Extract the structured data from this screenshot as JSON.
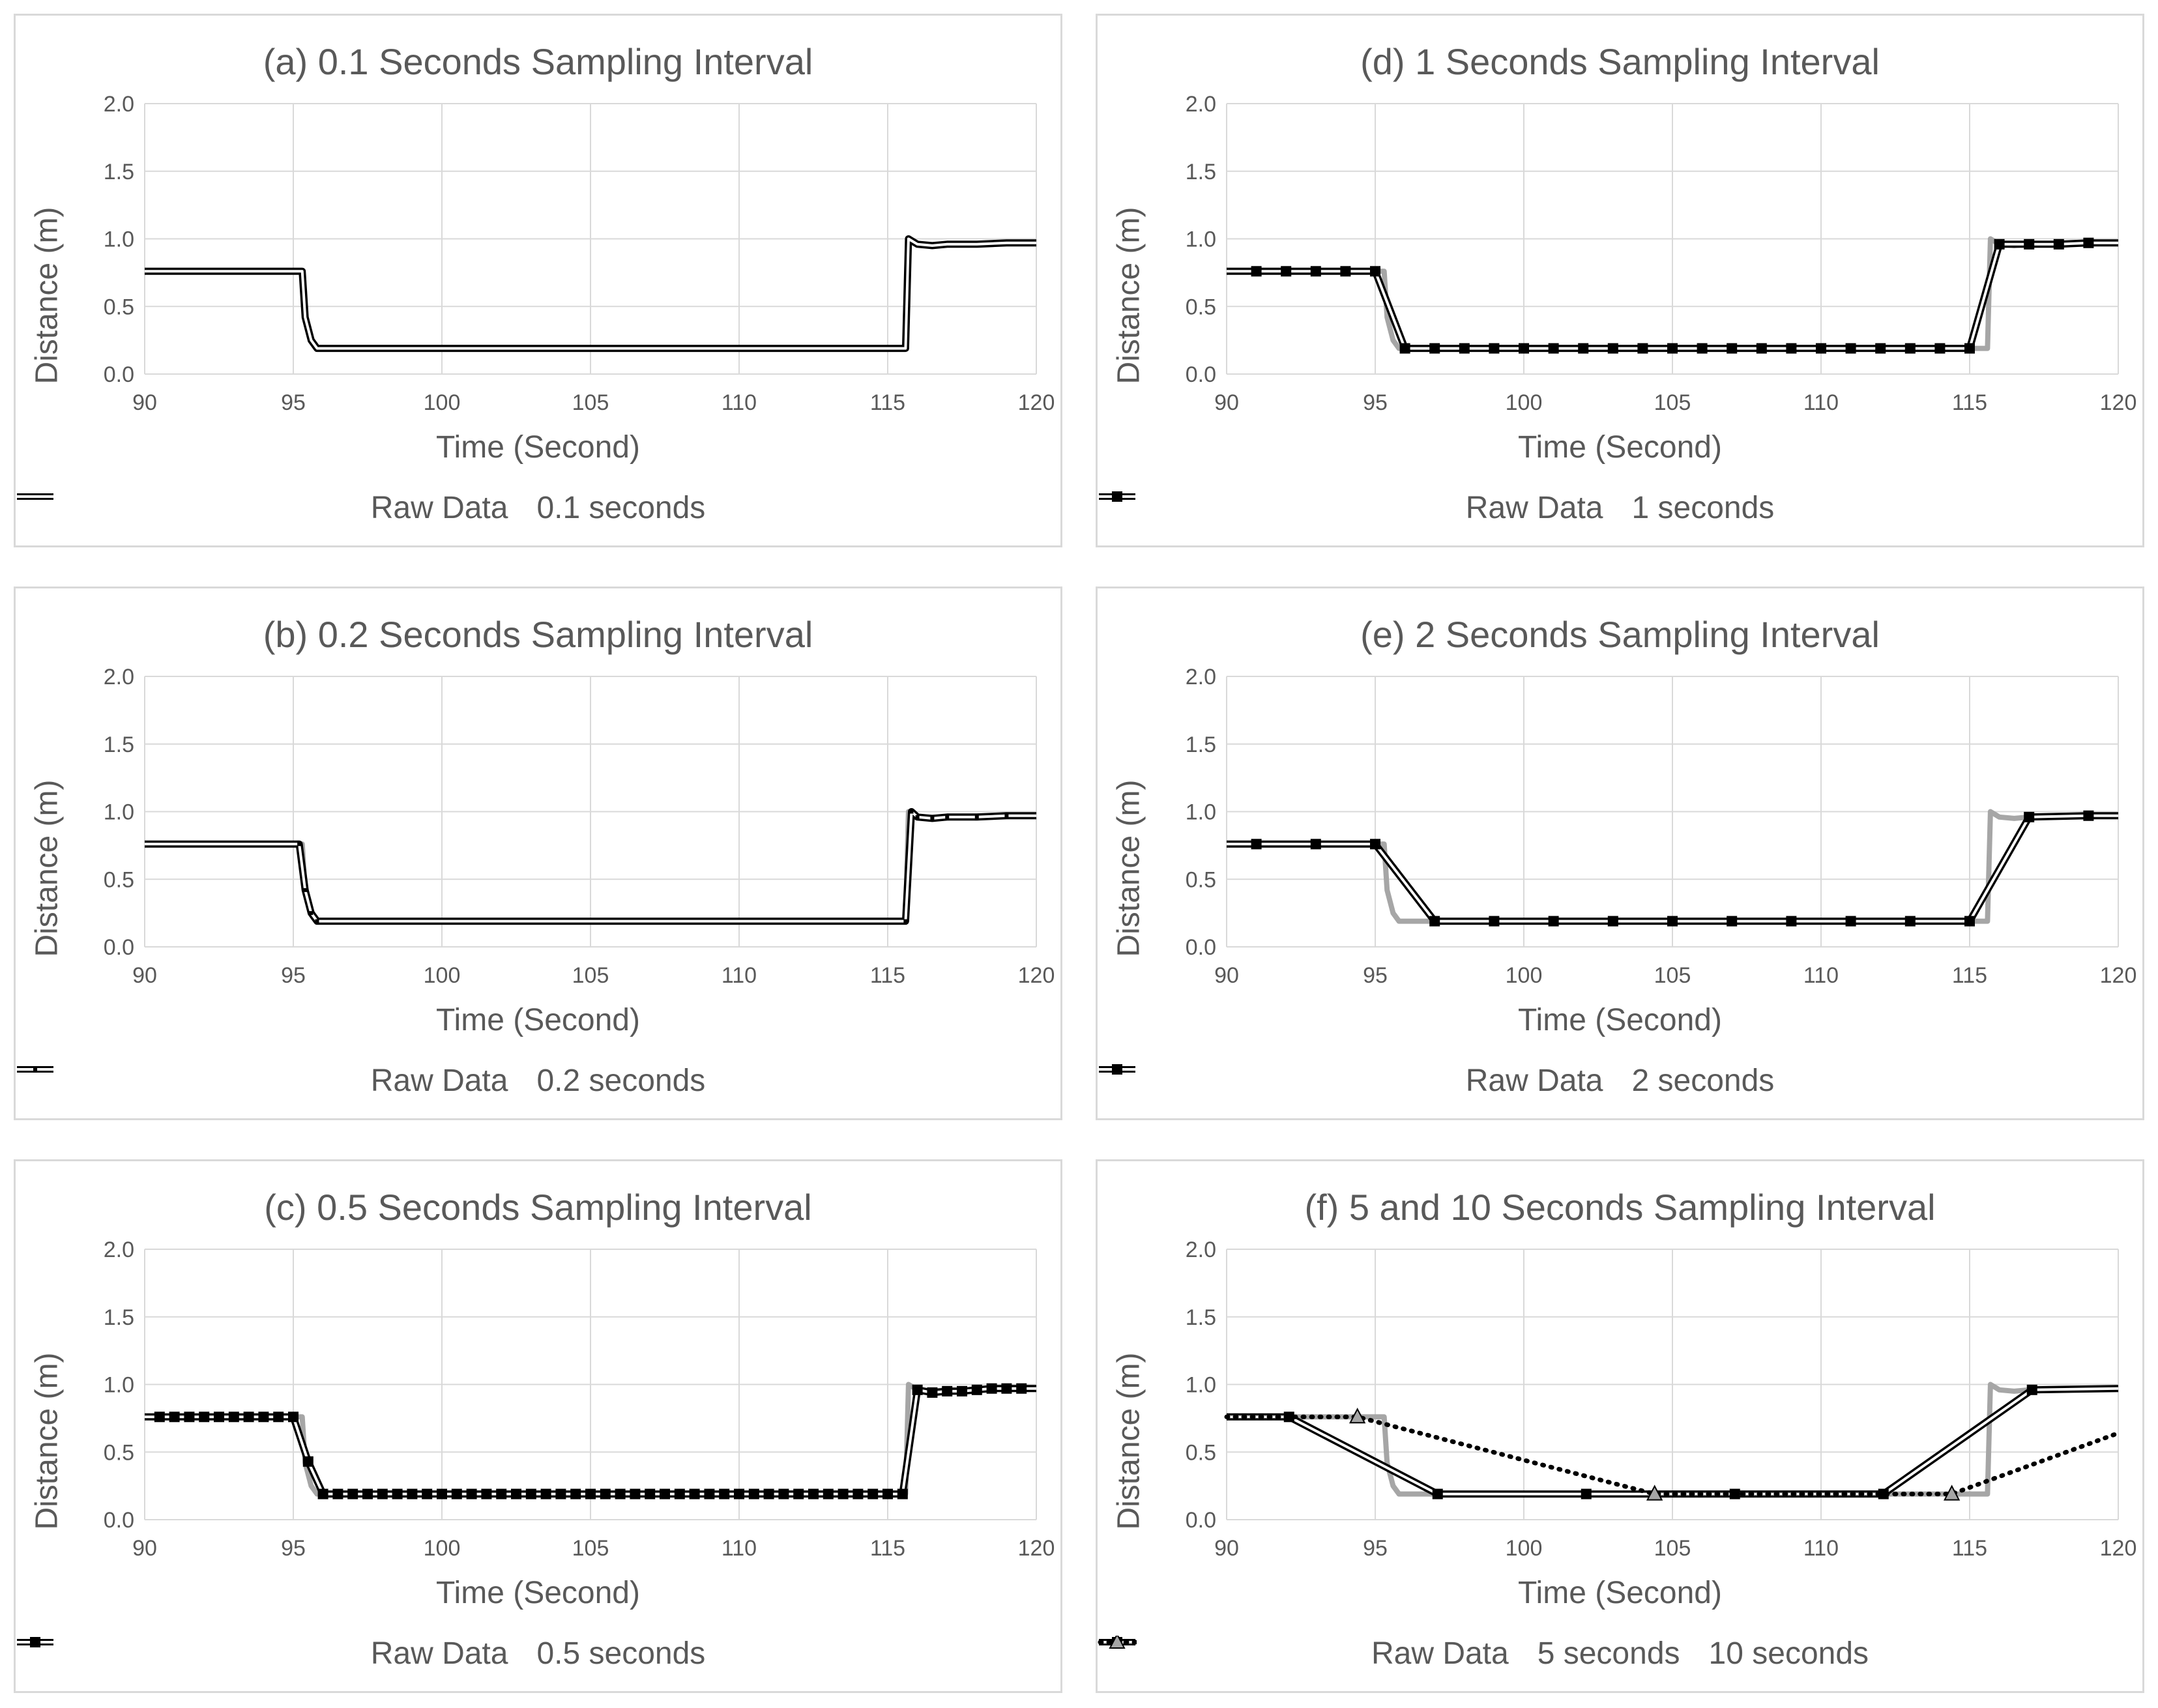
{
  "colors": {
    "raw": "#a6a6a6",
    "series": "#000000",
    "grid": "#d9d9d9",
    "text": "#595959",
    "triangle_fill": "#a6a6a6"
  },
  "chart_data": [
    {
      "id": "a",
      "type": "line",
      "title": "(a) 0.1 Seconds Sampling Interval",
      "xlabel": "Time (Second)",
      "ylabel": "Distance  (m)",
      "xlim": [
        90,
        120
      ],
      "ylim": [
        0.0,
        2.0
      ],
      "xticks": [
        "90",
        "95",
        "100",
        "105",
        "110",
        "115",
        "120"
      ],
      "yticks": [
        "0.0",
        "0.5",
        "1.0",
        "1.5",
        "2.0"
      ],
      "raw": [
        [
          90,
          0.76
        ],
        [
          95.3,
          0.76
        ],
        [
          95.4,
          0.42
        ],
        [
          95.6,
          0.25
        ],
        [
          95.8,
          0.19
        ],
        [
          115.6,
          0.19
        ],
        [
          115.7,
          1.0
        ],
        [
          116,
          0.96
        ],
        [
          116.5,
          0.95
        ],
        [
          117,
          0.96
        ],
        [
          118,
          0.96
        ],
        [
          119,
          0.97
        ],
        [
          120,
          0.97
        ]
      ],
      "series": [
        {
          "name": "0.1 seconds",
          "style": "double",
          "marker": "none",
          "points": [
            [
              90,
              0.76
            ],
            [
              95.3,
              0.76
            ],
            [
              95.4,
              0.42
            ],
            [
              95.6,
              0.25
            ],
            [
              95.8,
              0.19
            ],
            [
              115.6,
              0.19
            ],
            [
              115.7,
              1.0
            ],
            [
              116,
              0.96
            ],
            [
              116.5,
              0.95
            ],
            [
              117,
              0.96
            ],
            [
              118,
              0.96
            ],
            [
              119,
              0.97
            ],
            [
              120,
              0.97
            ]
          ]
        }
      ],
      "legend": [
        "Raw Data",
        "0.1 seconds"
      ]
    },
    {
      "id": "b",
      "type": "line",
      "title": "(b) 0.2 Seconds Sampling Interval",
      "xlabel": "Time (Second)",
      "ylabel": "Distance  (m)",
      "xlim": [
        90,
        120
      ],
      "ylim": [
        0.0,
        2.0
      ],
      "xticks": [
        "90",
        "95",
        "100",
        "105",
        "110",
        "115",
        "120"
      ],
      "yticks": [
        "0.0",
        "0.5",
        "1.0",
        "1.5",
        "2.0"
      ],
      "raw": [
        [
          90,
          0.76
        ],
        [
          95.3,
          0.76
        ],
        [
          95.4,
          0.42
        ],
        [
          95.6,
          0.25
        ],
        [
          95.8,
          0.19
        ],
        [
          115.6,
          0.19
        ],
        [
          115.7,
          1.0
        ],
        [
          116,
          0.96
        ],
        [
          116.5,
          0.95
        ],
        [
          117,
          0.96
        ],
        [
          118,
          0.96
        ],
        [
          119,
          0.97
        ],
        [
          120,
          0.97
        ]
      ],
      "series": [
        {
          "name": "0.2 seconds",
          "style": "double",
          "marker": "dot",
          "points": [
            [
              90,
              0.76
            ],
            [
              95.2,
              0.76
            ],
            [
              95.4,
              0.42
            ],
            [
              95.6,
              0.25
            ],
            [
              95.8,
              0.19
            ],
            [
              115.6,
              0.19
            ],
            [
              115.8,
              1.0
            ],
            [
              116,
              0.96
            ],
            [
              116.5,
              0.95
            ],
            [
              117,
              0.96
            ],
            [
              118,
              0.96
            ],
            [
              119,
              0.97
            ],
            [
              120,
              0.97
            ]
          ]
        }
      ],
      "legend": [
        "Raw Data",
        "0.2 seconds"
      ]
    },
    {
      "id": "c",
      "type": "line",
      "title": "(c) 0.5 Seconds Sampling Interval",
      "xlabel": "Time (Second)",
      "ylabel": "Distance  (m)",
      "xlim": [
        90,
        120
      ],
      "ylim": [
        0.0,
        2.0
      ],
      "xticks": [
        "90",
        "95",
        "100",
        "105",
        "110",
        "115",
        "120"
      ],
      "yticks": [
        "0.0",
        "0.5",
        "1.0",
        "1.5",
        "2.0"
      ],
      "raw": [
        [
          90,
          0.76
        ],
        [
          95.3,
          0.76
        ],
        [
          95.4,
          0.42
        ],
        [
          95.6,
          0.25
        ],
        [
          95.8,
          0.19
        ],
        [
          115.6,
          0.19
        ],
        [
          115.7,
          1.0
        ],
        [
          116,
          0.96
        ],
        [
          116.5,
          0.95
        ],
        [
          117,
          0.96
        ],
        [
          118,
          0.96
        ],
        [
          119,
          0.97
        ],
        [
          120,
          0.97
        ]
      ],
      "series": [
        {
          "name": "0.5 seconds",
          "style": "double",
          "marker": "square",
          "points": [
            [
              90,
              0.76
            ],
            [
              90.5,
              0.76
            ],
            [
              91,
              0.76
            ],
            [
              91.5,
              0.76
            ],
            [
              92,
              0.76
            ],
            [
              92.5,
              0.76
            ],
            [
              93,
              0.76
            ],
            [
              93.5,
              0.76
            ],
            [
              94,
              0.76
            ],
            [
              94.5,
              0.76
            ],
            [
              95,
              0.76
            ],
            [
              95.5,
              0.43
            ],
            [
              96,
              0.19
            ],
            [
              96.5,
              0.19
            ],
            [
              97,
              0.19
            ],
            [
              97.5,
              0.19
            ],
            [
              98,
              0.19
            ],
            [
              98.5,
              0.19
            ],
            [
              99,
              0.19
            ],
            [
              99.5,
              0.19
            ],
            [
              100,
              0.19
            ],
            [
              100.5,
              0.19
            ],
            [
              101,
              0.19
            ],
            [
              101.5,
              0.19
            ],
            [
              102,
              0.19
            ],
            [
              102.5,
              0.19
            ],
            [
              103,
              0.19
            ],
            [
              103.5,
              0.19
            ],
            [
              104,
              0.19
            ],
            [
              104.5,
              0.19
            ],
            [
              105,
              0.19
            ],
            [
              105.5,
              0.19
            ],
            [
              106,
              0.19
            ],
            [
              106.5,
              0.19
            ],
            [
              107,
              0.19
            ],
            [
              107.5,
              0.19
            ],
            [
              108,
              0.19
            ],
            [
              108.5,
              0.19
            ],
            [
              109,
              0.19
            ],
            [
              109.5,
              0.19
            ],
            [
              110,
              0.19
            ],
            [
              110.5,
              0.19
            ],
            [
              111,
              0.19
            ],
            [
              111.5,
              0.19
            ],
            [
              112,
              0.19
            ],
            [
              112.5,
              0.19
            ],
            [
              113,
              0.19
            ],
            [
              113.5,
              0.19
            ],
            [
              114,
              0.19
            ],
            [
              114.5,
              0.19
            ],
            [
              115,
              0.19
            ],
            [
              115.5,
              0.19
            ],
            [
              116,
              0.96
            ],
            [
              116.5,
              0.94
            ],
            [
              117,
              0.95
            ],
            [
              117.5,
              0.95
            ],
            [
              118,
              0.96
            ],
            [
              118.5,
              0.97
            ],
            [
              119,
              0.97
            ],
            [
              119.5,
              0.97
            ],
            [
              120,
              0.97
            ]
          ]
        }
      ],
      "legend": [
        "Raw Data",
        "0.5 seconds"
      ]
    },
    {
      "id": "d",
      "type": "line",
      "title": "(d) 1 Seconds Sampling Interval",
      "xlabel": "Time (Second)",
      "ylabel": "Distance  (m)",
      "xlim": [
        90,
        120
      ],
      "ylim": [
        0.0,
        2.0
      ],
      "xticks": [
        "90",
        "95",
        "100",
        "105",
        "110",
        "115",
        "120"
      ],
      "yticks": [
        "0.0",
        "0.5",
        "1.0",
        "1.5",
        "2.0"
      ],
      "raw": [
        [
          90,
          0.76
        ],
        [
          95.3,
          0.76
        ],
        [
          95.4,
          0.42
        ],
        [
          95.6,
          0.25
        ],
        [
          95.8,
          0.19
        ],
        [
          115.6,
          0.19
        ],
        [
          115.7,
          1.0
        ],
        [
          116,
          0.96
        ],
        [
          116.5,
          0.95
        ],
        [
          117,
          0.96
        ],
        [
          118,
          0.96
        ],
        [
          119,
          0.97
        ],
        [
          120,
          0.97
        ]
      ],
      "series": [
        {
          "name": "1 seconds",
          "style": "double",
          "marker": "square",
          "points": [
            [
              90,
              0.76
            ],
            [
              91,
              0.76
            ],
            [
              92,
              0.76
            ],
            [
              93,
              0.76
            ],
            [
              94,
              0.76
            ],
            [
              95,
              0.76
            ],
            [
              96,
              0.19
            ],
            [
              97,
              0.19
            ],
            [
              98,
              0.19
            ],
            [
              99,
              0.19
            ],
            [
              100,
              0.19
            ],
            [
              101,
              0.19
            ],
            [
              102,
              0.19
            ],
            [
              103,
              0.19
            ],
            [
              104,
              0.19
            ],
            [
              105,
              0.19
            ],
            [
              106,
              0.19
            ],
            [
              107,
              0.19
            ],
            [
              108,
              0.19
            ],
            [
              109,
              0.19
            ],
            [
              110,
              0.19
            ],
            [
              111,
              0.19
            ],
            [
              112,
              0.19
            ],
            [
              113,
              0.19
            ],
            [
              114,
              0.19
            ],
            [
              115,
              0.19
            ],
            [
              116,
              0.96
            ],
            [
              117,
              0.96
            ],
            [
              118,
              0.96
            ],
            [
              119,
              0.97
            ],
            [
              120,
              0.97
            ]
          ]
        }
      ],
      "legend": [
        "Raw Data",
        "1 seconds"
      ]
    },
    {
      "id": "e",
      "type": "line",
      "title": "(e) 2 Seconds Sampling Interval",
      "xlabel": "Time (Second)",
      "ylabel": "Distance  (m)",
      "xlim": [
        90,
        120
      ],
      "ylim": [
        0.0,
        2.0
      ],
      "xticks": [
        "90",
        "95",
        "100",
        "105",
        "110",
        "115",
        "120"
      ],
      "yticks": [
        "0.0",
        "0.5",
        "1.0",
        "1.5",
        "2.0"
      ],
      "raw": [
        [
          90,
          0.76
        ],
        [
          95.3,
          0.76
        ],
        [
          95.4,
          0.42
        ],
        [
          95.6,
          0.25
        ],
        [
          95.8,
          0.19
        ],
        [
          115.6,
          0.19
        ],
        [
          115.7,
          1.0
        ],
        [
          116,
          0.96
        ],
        [
          116.5,
          0.95
        ],
        [
          117,
          0.96
        ],
        [
          118,
          0.96
        ],
        [
          119,
          0.97
        ],
        [
          120,
          0.97
        ]
      ],
      "series": [
        {
          "name": "2 seconds",
          "style": "double",
          "marker": "square",
          "points": [
            [
              90,
              0.76
            ],
            [
              91,
              0.76
            ],
            [
              93,
              0.76
            ],
            [
              95,
              0.76
            ],
            [
              97,
              0.19
            ],
            [
              99,
              0.19
            ],
            [
              101,
              0.19
            ],
            [
              103,
              0.19
            ],
            [
              105,
              0.19
            ],
            [
              107,
              0.19
            ],
            [
              109,
              0.19
            ],
            [
              111,
              0.19
            ],
            [
              113,
              0.19
            ],
            [
              115,
              0.19
            ],
            [
              117,
              0.96
            ],
            [
              119,
              0.97
            ],
            [
              120,
              0.97
            ]
          ]
        }
      ],
      "legend": [
        "Raw Data",
        "2 seconds"
      ]
    },
    {
      "id": "f",
      "type": "line",
      "title": "(f) 5 and 10 Seconds Sampling Interval",
      "xlabel": "Time (Second)",
      "ylabel": "Distance  (m)",
      "xlim": [
        90,
        120
      ],
      "ylim": [
        0.0,
        2.0
      ],
      "xticks": [
        "90",
        "95",
        "100",
        "105",
        "110",
        "115",
        "120"
      ],
      "yticks": [
        "0.0",
        "0.5",
        "1.0",
        "1.5",
        "2.0"
      ],
      "raw": [
        [
          90,
          0.76
        ],
        [
          95.3,
          0.76
        ],
        [
          95.4,
          0.42
        ],
        [
          95.6,
          0.25
        ],
        [
          95.8,
          0.19
        ],
        [
          115.6,
          0.19
        ],
        [
          115.7,
          1.0
        ],
        [
          116,
          0.96
        ],
        [
          116.5,
          0.95
        ],
        [
          117,
          0.96
        ],
        [
          118,
          0.96
        ],
        [
          119,
          0.97
        ],
        [
          120,
          0.97
        ]
      ],
      "series": [
        {
          "name": "5 seconds",
          "style": "double",
          "marker": "square",
          "points": [
            [
              90,
              0.76
            ],
            [
              92.1,
              0.76
            ],
            [
              97.1,
              0.19
            ],
            [
              102.1,
              0.19
            ],
            [
              107.1,
              0.19
            ],
            [
              112.1,
              0.19
            ],
            [
              117.1,
              0.96
            ],
            [
              120,
              0.97
            ]
          ]
        },
        {
          "name": "10 seconds",
          "style": "dotted",
          "marker": "triangle",
          "points": [
            [
              90,
              0.76
            ],
            [
              94.4,
              0.76
            ],
            [
              104.4,
              0.19
            ],
            [
              114.4,
              0.19
            ],
            [
              120,
              0.64
            ]
          ]
        }
      ],
      "legend": [
        "Raw Data",
        "5 seconds",
        "10 seconds"
      ]
    }
  ]
}
